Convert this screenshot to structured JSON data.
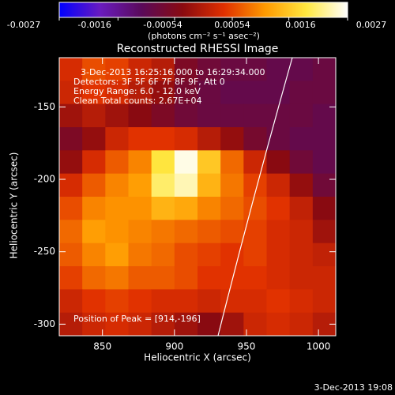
{
  "chart_data": {
    "type": "heatmap",
    "title": "Reconstructed RHESSI Image",
    "colorbar_label": "(photons cm⁻² s⁻¹ asec⁻²)",
    "clim": [
      -0.0027,
      0.0027
    ],
    "cticks": [
      -0.0027,
      -0.0016,
      -0.00054,
      0.00054,
      0.0016,
      0.0027
    ],
    "colorscale": [
      "#0000ff",
      "#6a1bbf",
      "#5a0a5a",
      "#8a0a10",
      "#e03000",
      "#ff9a00",
      "#ffe840",
      "#ffffff"
    ],
    "x_label": "Heliocentric X (arcsec)",
    "y_label": "Heliocentric Y (arcsec)",
    "xlim": [
      820,
      1012
    ],
    "ylim": [
      -308,
      -116
    ],
    "xticks": [
      850,
      900,
      950,
      1000
    ],
    "yticks": [
      -150,
      -200,
      -250,
      -300
    ],
    "annotations": [
      "3-Dec-2013 16:25:16.000 to 16:29:34.000",
      "Detectors: 3F 5F 6F 7F 8F 9F, Att 0",
      "Energy Range: 6.0 - 12.0 keV",
      "Clean     Total counts: 2.67E+04"
    ],
    "peak_label": "Position of Peak = [914,-196]",
    "timestamp": "3-Dec-2013 19:08",
    "x": [
      828,
      844,
      860,
      876,
      892,
      908,
      924,
      940,
      956,
      972,
      988,
      1004
    ],
    "y": [
      -124,
      -140,
      -156,
      -172,
      -188,
      -204,
      -220,
      -236,
      -252,
      -268,
      -284,
      -300
    ],
    "values": [
      [
        0.0003,
        0.0006,
        0.0005,
        0.0002,
        0,
        -0.0006,
        -0.0008,
        -0.0009,
        -0.0009,
        -0.001,
        -0.001,
        -0.0009
      ],
      [
        0.0002,
        0.0004,
        0.0003,
        0,
        -0.0003,
        -0.0007,
        -0.0009,
        -0.001,
        -0.001,
        -0.001,
        -0.0009,
        -0.0009
      ],
      [
        -0.0002,
        0,
        -0.0002,
        -0.0004,
        -0.0006,
        -0.0008,
        -0.0009,
        -0.0009,
        -0.0009,
        -0.0009,
        -0.0009,
        -0.001
      ],
      [
        -0.0006,
        -0.0003,
        0.0002,
        0.0004,
        0.0004,
        0.0003,
        0,
        -0.0003,
        -0.0007,
        -0.0009,
        -0.001,
        -0.001
      ],
      [
        -0.0003,
        0.0003,
        0.0007,
        0.001,
        0.0019,
        0.0026,
        0.0016,
        0.0008,
        0.0002,
        -0.0004,
        -0.0008,
        -0.001
      ],
      [
        0.0003,
        0.0007,
        0.001,
        0.0012,
        0.0021,
        0.0024,
        0.0014,
        0.0009,
        0.0005,
        0.0002,
        -0.0003,
        -0.0008
      ],
      [
        0.0006,
        0.001,
        0.0011,
        0.0011,
        0.0014,
        0.0013,
        0.001,
        0.0008,
        0.0006,
        0.0004,
        0.0001,
        -0.0004
      ],
      [
        0.0008,
        0.0012,
        0.0011,
        0.001,
        0.0009,
        0.0008,
        0.0007,
        0.0006,
        0.0005,
        0.0003,
        0.0002,
        -0.0002
      ],
      [
        0.0007,
        0.001,
        0.0012,
        0.0009,
        0.0008,
        0.0006,
        0.0005,
        0.0004,
        0.0005,
        0.0003,
        0.0002,
        0.0001
      ],
      [
        0.0005,
        0.0008,
        0.0009,
        0.0007,
        0.0007,
        0.0006,
        0.0004,
        0.0004,
        0.0004,
        0.0003,
        0.0002,
        0.0002
      ],
      [
        0.0002,
        0.0004,
        0.0005,
        0.0004,
        0.0003,
        0.0003,
        0.0002,
        0.0003,
        0.0003,
        0.0004,
        0.0003,
        0.0002
      ],
      [
        0,
        0.0002,
        0.0003,
        0.0002,
        0,
        -0.0002,
        -0.0004,
        -0.0002,
        0.0002,
        0.0003,
        0.0002,
        0
      ]
    ]
  }
}
